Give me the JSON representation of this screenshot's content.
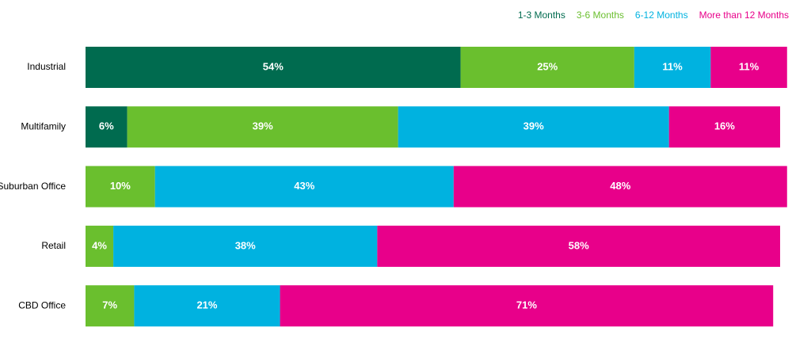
{
  "chart_data": {
    "type": "stacked-bar-horizontal",
    "categories": [
      "Industrial",
      "Multifamily",
      "Suburban Office",
      "Retail",
      "CBD Office"
    ],
    "xlim": [
      0,
      100
    ],
    "legend": "top-right",
    "series": [
      {
        "name": "1-3 Months",
        "color": "#006b4f",
        "values": [
          54,
          6,
          0,
          0,
          0
        ],
        "value_labels": [
          "54%",
          "6%",
          null,
          null,
          null
        ]
      },
      {
        "name": "3-6 Months",
        "color": "#6abf2e",
        "values": [
          25,
          39,
          10,
          4,
          7
        ],
        "value_labels": [
          "25%",
          "39%",
          "10%",
          "4%",
          "7%"
        ]
      },
      {
        "name": "6-12 Months",
        "color": "#00b2e0",
        "values": [
          11,
          39,
          43,
          38,
          21
        ],
        "value_labels": [
          "11%",
          "39%",
          "43%",
          "38%",
          "21%"
        ]
      },
      {
        "name": "More than 12 Months",
        "color": "#e8008a",
        "values": [
          11,
          16,
          48,
          58,
          71
        ],
        "value_labels": [
          "11%",
          "16%",
          "48%",
          "58%",
          "71%"
        ]
      }
    ]
  }
}
